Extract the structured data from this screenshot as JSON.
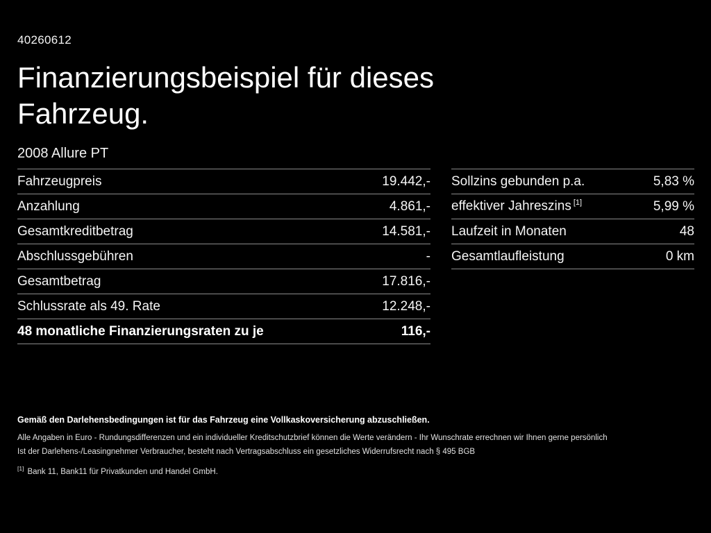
{
  "page": {
    "document_number": "40260612",
    "title": "Finanzierungsbeispiel für dieses Fahrzeug.",
    "vehicle_model": "2008 Allure PT"
  },
  "left_table": {
    "rows": [
      {
        "label": "Fahrzeugpreis",
        "value": "19.442,-"
      },
      {
        "label": "Anzahlung",
        "value": "4.861,-"
      },
      {
        "label": "Gesamtkreditbetrag",
        "value": "14.581,-"
      },
      {
        "label": "Abschlussgebühren",
        "value": "-"
      },
      {
        "label": "Gesamtbetrag",
        "value": "17.816,-"
      },
      {
        "label": "Schlussrate als 49. Rate",
        "value": "12.248,-"
      },
      {
        "label": "48 monatliche Finanzierungsraten zu je",
        "value": "116,-"
      }
    ]
  },
  "right_table": {
    "rows": [
      {
        "label": "Sollzins gebunden p.a.",
        "value": "5,83 %"
      },
      {
        "label": "effektiver Jahreszins",
        "sup": "[1]",
        "value": "5,99 %"
      },
      {
        "label": "Laufzeit in Monaten",
        "value": "48"
      },
      {
        "label": "Gesamtlaufleistung",
        "value": "0 km"
      }
    ]
  },
  "footer": {
    "note_bold": "Gemäß den Darlehensbedingungen ist für das Fahrzeug eine Vollkaskoversicherung abzuschließen.",
    "note_2": "Alle Angaben in Euro - Rundungsdifferenzen und ein individueller Kreditschutzbrief können die Werte verändern - Ihr Wunschrate errechnen wir Ihnen gerne persönlich",
    "note_3": "Ist der Darlehens-/Leasingnehmer Verbraucher, besteht nach Vertragsabschluss ein gesetzliches Widerrufsrecht nach § 495 BGB",
    "footnote_marker": "[1]",
    "footnote_text": "Bank 11, Bank11 für Privatkunden und Handel GmbH."
  }
}
